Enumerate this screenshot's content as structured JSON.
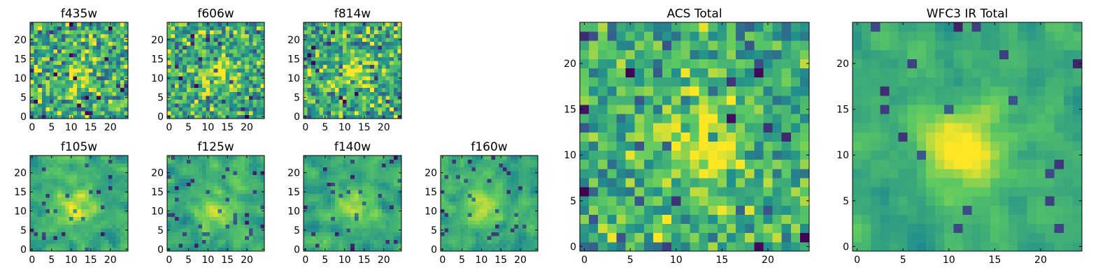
{
  "figure": {
    "description": "HST multi-band image cutouts"
  },
  "colors": {
    "colormap": [
      "#440154",
      "#3b528b",
      "#21908d",
      "#5dc962",
      "#fde725"
    ]
  },
  "chart_data": [
    {
      "type": "heatmap",
      "title": "f435w",
      "grid_size": 25,
      "xlim": [
        0,
        24
      ],
      "ylim": [
        0,
        24
      ],
      "xticks": [
        "0",
        "5",
        "10",
        "15",
        "20"
      ],
      "yticks": [
        "0",
        "5",
        "10",
        "15",
        "20"
      ],
      "noise": 0.55,
      "smooth": 0,
      "seed": 11,
      "peak": 0.25,
      "center": [
        12,
        12
      ]
    },
    {
      "type": "heatmap",
      "title": "f606w",
      "grid_size": 25,
      "xlim": [
        0,
        24
      ],
      "ylim": [
        0,
        24
      ],
      "xticks": [
        "0",
        "5",
        "10",
        "15",
        "20"
      ],
      "yticks": [
        "0",
        "5",
        "10",
        "15",
        "20"
      ],
      "noise": 0.5,
      "smooth": 0,
      "seed": 23,
      "peak": 0.3,
      "center": [
        13,
        11
      ]
    },
    {
      "type": "heatmap",
      "title": "f814w",
      "grid_size": 25,
      "xlim": [
        0,
        24
      ],
      "ylim": [
        0,
        24
      ],
      "xticks": [
        "0",
        "5",
        "10",
        "15",
        "20"
      ],
      "yticks": [
        "0",
        "5",
        "10",
        "15",
        "20"
      ],
      "noise": 0.5,
      "smooth": 0,
      "seed": 37,
      "peak": 0.3,
      "center": [
        13,
        12
      ]
    },
    {
      "type": "heatmap",
      "title": "f105w",
      "grid_size": 25,
      "xlim": [
        0,
        24
      ],
      "ylim": [
        0,
        24
      ],
      "xticks": [
        "0",
        "5",
        "10",
        "15",
        "20"
      ],
      "yticks": [
        "0",
        "5",
        "10",
        "15",
        "20"
      ],
      "noise": 0.45,
      "smooth": 1,
      "seed": 41,
      "peak": 0.35,
      "center": [
        11,
        11
      ]
    },
    {
      "type": "heatmap",
      "title": "f125w",
      "grid_size": 25,
      "xlim": [
        0,
        24
      ],
      "ylim": [
        0,
        24
      ],
      "xticks": [
        "0",
        "5",
        "10",
        "15",
        "20"
      ],
      "yticks": [
        "0",
        "5",
        "10",
        "15",
        "20"
      ],
      "noise": 0.45,
      "smooth": 1,
      "seed": 53,
      "peak": 0.3,
      "center": [
        12,
        10
      ]
    },
    {
      "type": "heatmap",
      "title": "f140w",
      "grid_size": 25,
      "xlim": [
        0,
        24
      ],
      "ylim": [
        0,
        24
      ],
      "xticks": [
        "0",
        "5",
        "10",
        "15",
        "20"
      ],
      "yticks": [
        "0",
        "5",
        "10",
        "15",
        "20"
      ],
      "noise": 0.45,
      "smooth": 1,
      "seed": 67,
      "peak": 0.3,
      "center": [
        12,
        12
      ]
    },
    {
      "type": "heatmap",
      "title": "f160w",
      "grid_size": 25,
      "xlim": [
        0,
        24
      ],
      "ylim": [
        0,
        24
      ],
      "xticks": [
        "0",
        "5",
        "10",
        "15",
        "20"
      ],
      "yticks": [
        "0",
        "5",
        "10",
        "15",
        "20"
      ],
      "noise": 0.45,
      "smooth": 1,
      "seed": 79,
      "peak": 0.3,
      "center": [
        10,
        11
      ]
    },
    {
      "type": "heatmap",
      "title": "ACS Total",
      "grid_size": 25,
      "xlim": [
        0,
        24
      ],
      "ylim": [
        0,
        24
      ],
      "xticks": [
        "0",
        "5",
        "10",
        "15",
        "20"
      ],
      "yticks": [
        "0",
        "5",
        "10",
        "15",
        "20"
      ],
      "noise": 0.4,
      "smooth": 0,
      "seed": 97,
      "peak": 0.4,
      "center": [
        13,
        11
      ]
    },
    {
      "type": "heatmap",
      "title": "WFC3 IR Total",
      "grid_size": 25,
      "xlim": [
        0,
        24
      ],
      "ylim": [
        0,
        24
      ],
      "xticks": [
        "0",
        "5",
        "10",
        "15",
        "20"
      ],
      "yticks": [
        "0",
        "5",
        "10",
        "15",
        "20"
      ],
      "noise": 0.35,
      "smooth": 1,
      "seed": 113,
      "peak": 0.45,
      "center": [
        12,
        11
      ]
    }
  ]
}
